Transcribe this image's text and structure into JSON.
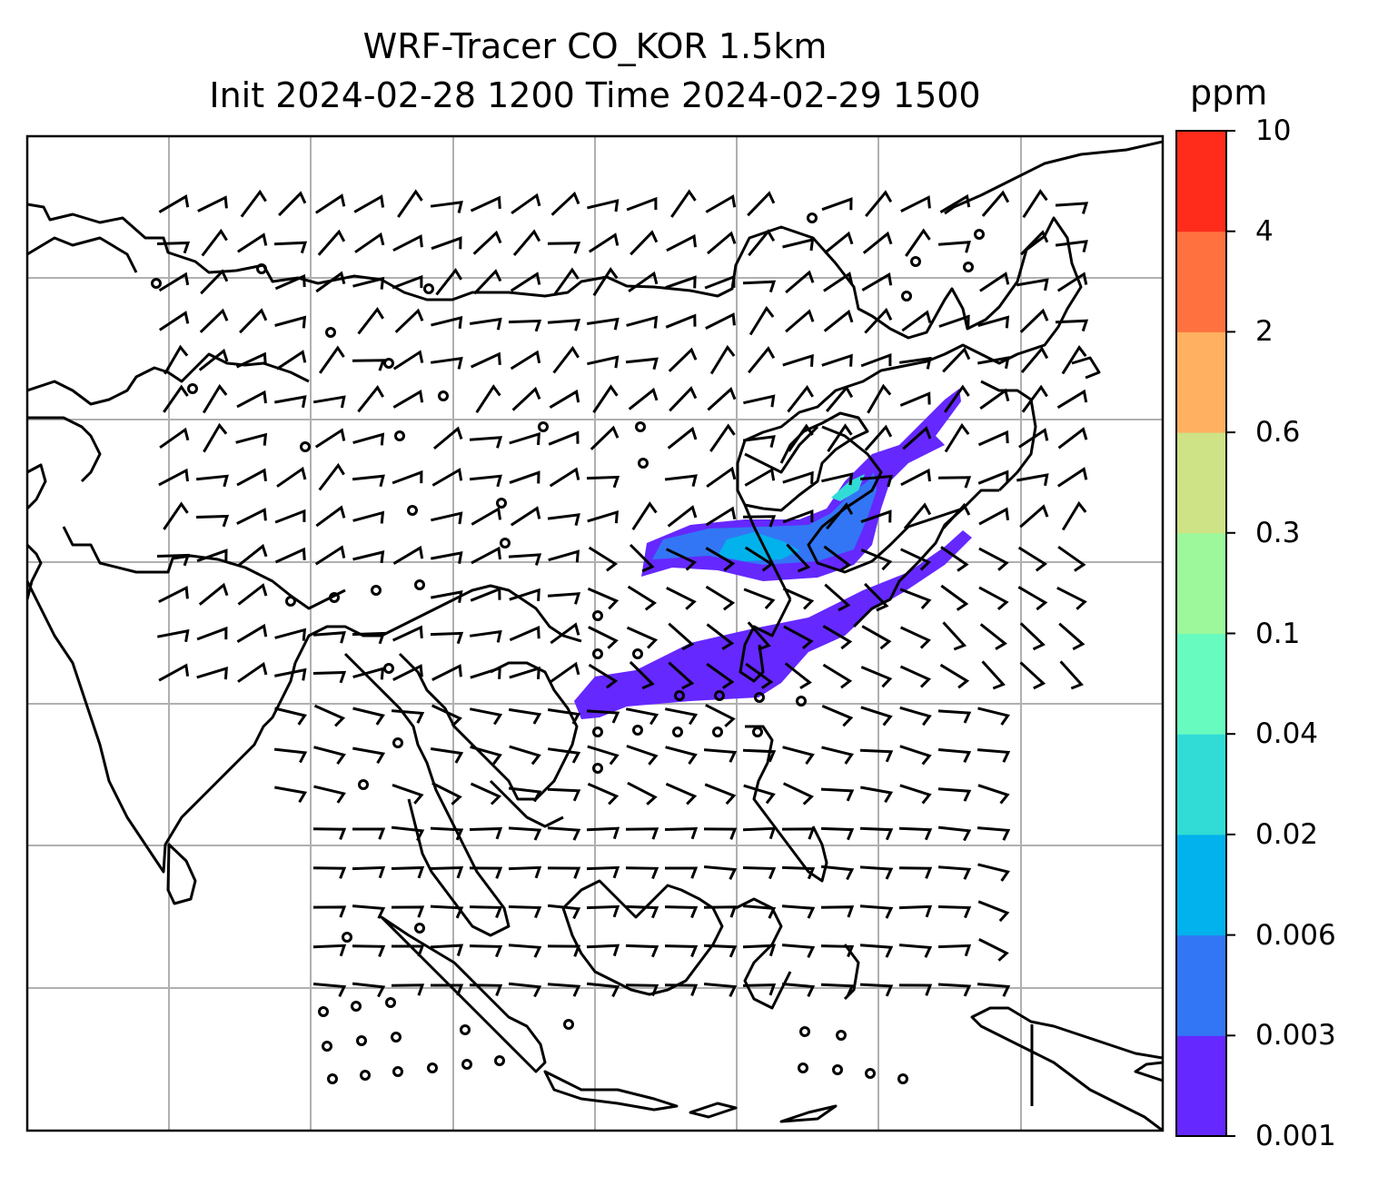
{
  "title": {
    "line1": "WRF-Tracer CO_KOR 1.5km",
    "line2": "Init 2024-02-28 1200 Time 2024-02-29 1500"
  },
  "colorbar": {
    "unit": "ppm",
    "levels": [
      "0.001",
      "0.003",
      "0.006",
      "0.02",
      "0.04",
      "0.1",
      "0.3",
      "0.6",
      "2",
      "4",
      "10"
    ],
    "colors": [
      "#6528ff",
      "#3276f5",
      "#02b2ec",
      "#31dcd6",
      "#68fbbf",
      "#9cf89a",
      "#cde386",
      "#ffb060",
      "#ff7240",
      "#ff2c1c"
    ]
  },
  "map": {
    "gridlines": true,
    "grid_color": "#b0b0b0",
    "coastline_color": "#000000",
    "wind_barb_color": "#000000"
  }
}
